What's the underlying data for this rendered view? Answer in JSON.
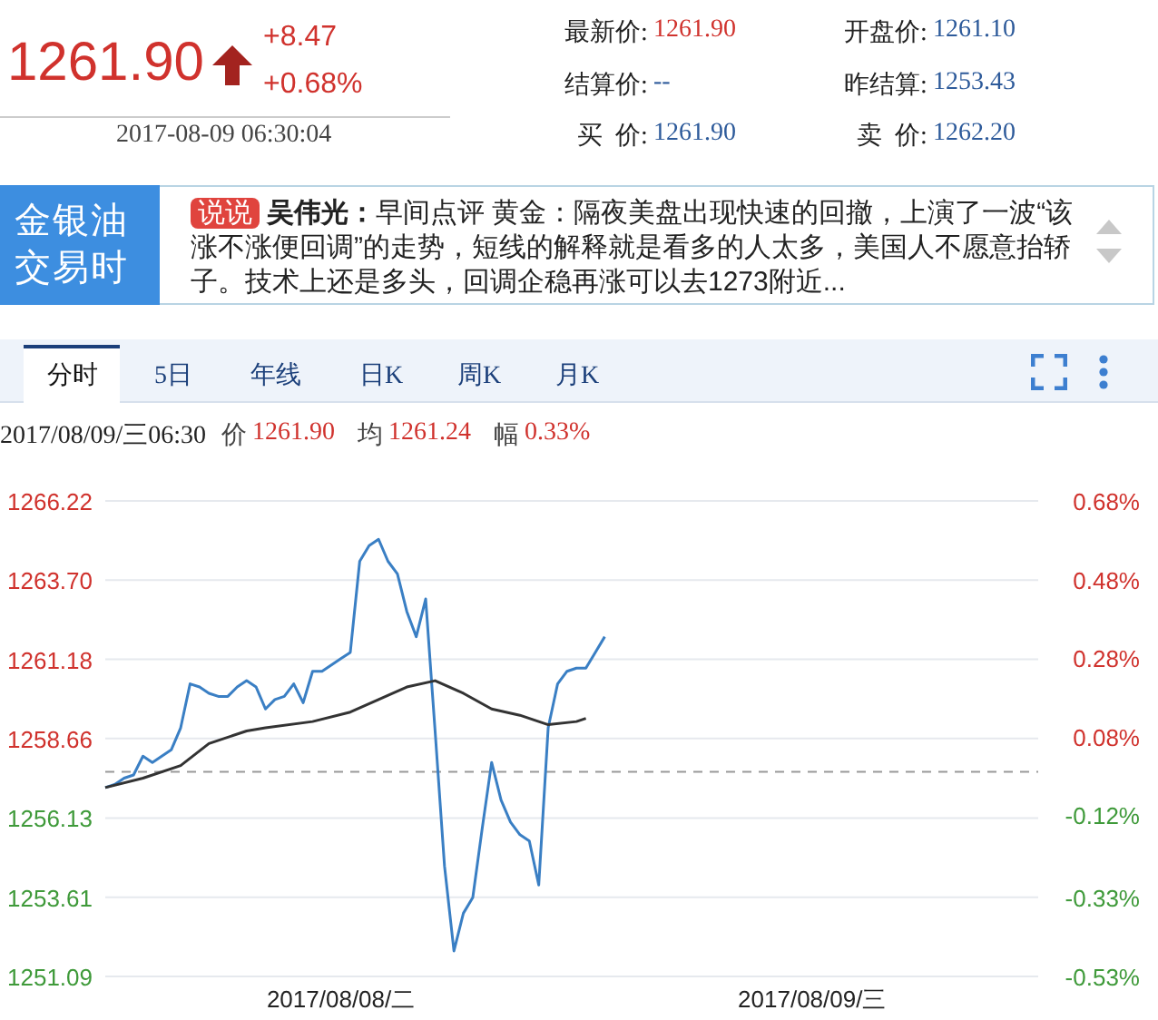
{
  "chart_data": {
    "type": "line",
    "annotations": [
      "1261.90",
      "+8.47",
      "+0.68%",
      "2017-08-09 06:30:04",
      "最新价:",
      "1261.90",
      "开盘价:",
      "1261.10",
      "结算价:",
      "--",
      "昨结算:",
      "1253.43",
      "买  价:",
      "1261.90",
      "卖  价:",
      "1262.20",
      "金银油交易时",
      "说说",
      "吴伟光：",
      "早间点评 黄金：隔夜美盘出现快速的回撤，上演了一波“该涨不涨便回调”的走势，短线的解释就是看多的人太多，美国人不愿意抬轿子。技术上还是多头，回调企稳再涨可以去1273附近...",
      "分时",
      "5日",
      "年线",
      "日K",
      "周K",
      "月K",
      "2017/08/09/三06:30",
      "价",
      "1261.90",
      "均",
      "1261.24",
      "幅",
      "0.33%"
    ],
    "categories": [
      null,
      null,
      null,
      null,
      null,
      null,
      null,
      null,
      null,
      null,
      null,
      null,
      null,
      null,
      null,
      null,
      null,
      null,
      null,
      null,
      null,
      null,
      null,
      null,
      null,
      "2017/08/08/二",
      null,
      null,
      null,
      null,
      null,
      null,
      null,
      null,
      null,
      null,
      null,
      null,
      null,
      null,
      null,
      null,
      null,
      null,
      null,
      null,
      null,
      null,
      null,
      null,
      null,
      null,
      null,
      null,
      null,
      null,
      null,
      null,
      null,
      null,
      null,
      null,
      null,
      null,
      null,
      null,
      null,
      null,
      null,
      null,
      null,
      null,
      null,
      null,
      null,
      "2017/08/09/三",
      null,
      null,
      null,
      null,
      null,
      null,
      null,
      null,
      null,
      null,
      null,
      null,
      null,
      null,
      null,
      null,
      null,
      null,
      null,
      null,
      null,
      null,
      null,
      null
    ],
    "series": [
      {
        "color": "#3a7fc4",
        "values": [
          1257.1,
          1257.2,
          1257.4,
          1257.5,
          1258.1,
          1257.9,
          1258.1,
          1258.3,
          1259.0,
          1260.4,
          1260.3,
          1260.1,
          1260.0,
          1260.0,
          1260.3,
          1260.5,
          1260.3,
          1259.6,
          1259.9,
          1260.0,
          1260.4,
          1259.8,
          1260.8,
          1260.8,
          1261.0,
          1261.2,
          1261.4,
          1264.3,
          1264.8,
          1265.0,
          1264.3,
          1263.9,
          1262.7,
          1261.9,
          1263.1,
          1258.9,
          1254.6,
          1251.9,
          1253.1,
          1253.6,
          1255.8,
          1257.9,
          1256.7,
          1256.0,
          1255.6,
          1255.4,
          1254.0,
          1259.0,
          1260.4,
          1260.8,
          1260.9,
          1260.9,
          1261.4,
          1261.9,
          null,
          null,
          null,
          null,
          null,
          null,
          null,
          null,
          null,
          null,
          null,
          null,
          null,
          null,
          null,
          null,
          null,
          null,
          null,
          null,
          null,
          null,
          null,
          null,
          null,
          null,
          null,
          null,
          null,
          null,
          null,
          null,
          null,
          null,
          null,
          null,
          null,
          null,
          null,
          null,
          null,
          null,
          null,
          null,
          null,
          null
        ]
      },
      {
        "color": "#333333",
        "values": [
          1257.1,
          null,
          null,
          null,
          1257.4,
          null,
          null,
          null,
          1257.8,
          null,
          null,
          1258.5,
          null,
          null,
          null,
          1258.9,
          null,
          1259.0,
          null,
          null,
          null,
          null,
          1259.2,
          null,
          null,
          null,
          1259.5,
          null,
          null,
          1259.9,
          null,
          null,
          1260.3,
          null,
          null,
          1260.5,
          null,
          null,
          1260.1,
          null,
          null,
          1259.6,
          null,
          null,
          1259.4,
          null,
          null,
          1259.1,
          null,
          null,
          1259.2,
          1259.3,
          null,
          null,
          null,
          null,
          null,
          null,
          null,
          null,
          null,
          null,
          null,
          null,
          null,
          null,
          null,
          null,
          null,
          null,
          null,
          null,
          null,
          null,
          null,
          null,
          null,
          null,
          null,
          null,
          null,
          null,
          null,
          null,
          null,
          null,
          null,
          null,
          null,
          null,
          null,
          null,
          null,
          null,
          null,
          null,
          null,
          null,
          null,
          null
        ]
      }
    ],
    "ylim": [
      1251.09,
      1266.22
    ],
    "yticks": [
      {
        "value": 1266.22,
        "label": "1266.22"
      },
      {
        "value": 1263.7,
        "label": "1263.70"
      },
      {
        "value": 1261.18,
        "label": "1261.18"
      },
      {
        "value": 1258.66,
        "label": "1258.66"
      },
      {
        "value": 1256.13,
        "label": "1256.13"
      },
      {
        "value": 1253.61,
        "label": "1253.61"
      },
      {
        "value": 1251.09,
        "label": "1251.09"
      }
    ],
    "y2lim": [
      -0.53,
      0.68
    ],
    "y2ticks": [
      {
        "value": 0.68,
        "label": "0.68%"
      },
      {
        "value": 0.48,
        "label": "0.48%"
      },
      {
        "value": 0.28,
        "label": "0.28%"
      },
      {
        "value": 0.08,
        "label": "0.08%"
      },
      {
        "value": -0.12,
        "label": "-0.12%"
      },
      {
        "value": -0.33,
        "label": "-0.33%"
      },
      {
        "value": -0.53,
        "label": "-0.53%"
      }
    ],
    "ref_lines": [
      {
        "axis": "y",
        "value": 1257.6,
        "color": "#999999",
        "line_style": "dashed"
      }
    ],
    "grid": "y",
    "legend": false,
    "marker": "none",
    "line_style": "solid"
  }
}
